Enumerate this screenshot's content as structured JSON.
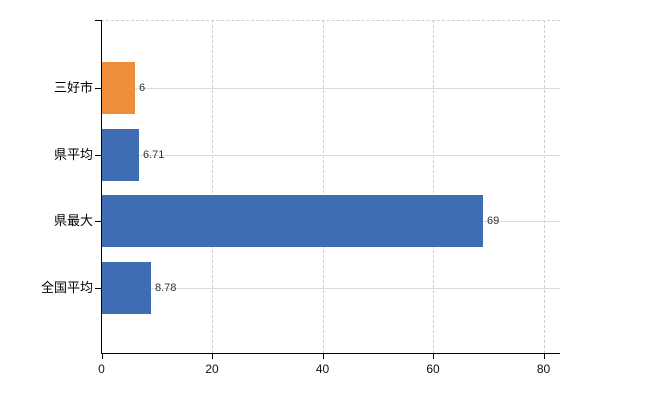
{
  "chart_data": {
    "type": "bar",
    "orientation": "horizontal",
    "title": "",
    "xlabel": "",
    "ylabel": "",
    "categories": [
      "三好市",
      "県平均",
      "県最大",
      "全国平均"
    ],
    "values": [
      6,
      6.71,
      69,
      8.78
    ],
    "value_labels": [
      "6",
      "6.71",
      "69",
      "8.78"
    ],
    "x_ticks": [
      0,
      20,
      40,
      60,
      80
    ],
    "x_tick_labels": [
      "0",
      "20",
      "40",
      "60",
      "80"
    ],
    "xlim": [
      0,
      83
    ],
    "grid": true,
    "legend": false,
    "highlight_index": 0,
    "colors": {
      "highlight_bar": "#ef8e3a",
      "default_bar": "#3e6db3",
      "grid_solid": "#d7ddd7",
      "grid_dashed": "#d2ccd2",
      "axis": "#000000",
      "value_text": "#333333",
      "label_text": "#000000",
      "background": "#ffffff"
    }
  }
}
